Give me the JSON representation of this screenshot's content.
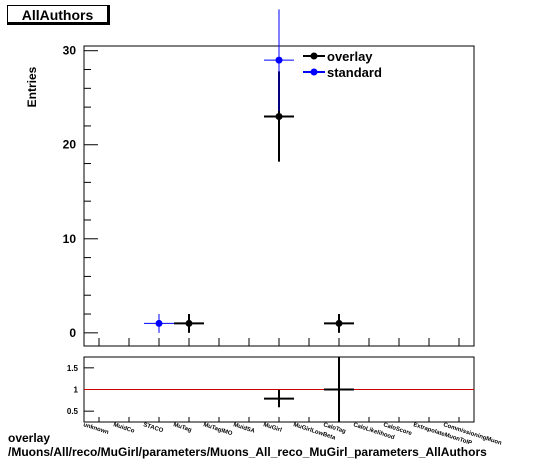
{
  "histogram_title": "AllAuthors",
  "footer": {
    "line1": "overlay",
    "line2": "/Muons/All/reco/MuGirl/parameters/Muons_All_reco_MuGirl_parameters_AllAuthors"
  },
  "chart_data": [
    {
      "type": "scatter",
      "ylabel": "Entries",
      "ylim": [
        -1.4,
        30.5
      ],
      "yticks": [
        0,
        10,
        20,
        30
      ],
      "categories": [
        "unknown",
        "MuidCo",
        "STACO",
        "MuTag",
        "MuTagIMO",
        "MuidSA",
        "MuGirl",
        "MuGirlLowBeta",
        "CaloTag",
        "CaloLikelihood",
        "CaloScore",
        "ExtrapolateMuonToIP",
        "CommissioningMuon"
      ],
      "legend_position": "top-right",
      "series": [
        {
          "name": "overlay",
          "color": "#000000",
          "points": [
            {
              "category": "MuTag",
              "y": 1,
              "err": 1
            },
            {
              "category": "MuGirl",
              "y": 23,
              "err": 4.8
            },
            {
              "category": "CaloTag",
              "y": 1,
              "err": 1
            }
          ]
        },
        {
          "name": "standard",
          "color": "#0000ff",
          "points": [
            {
              "category": "STACO",
              "y": 1,
              "err": 1
            },
            {
              "category": "MuGirl",
              "y": 29,
              "err": 5.4
            }
          ]
        }
      ]
    },
    {
      "type": "scatter",
      "ylim": [
        0.25,
        1.75
      ],
      "yticks": [
        0.5,
        1,
        1.5
      ],
      "reference_line": {
        "y": 1,
        "color": "#cc0000"
      },
      "points": [
        {
          "category": "MuGirl",
          "y": 0.79,
          "err": 0.2
        },
        {
          "category": "CaloTag",
          "y": 1.0,
          "err": 1.0
        }
      ]
    }
  ]
}
